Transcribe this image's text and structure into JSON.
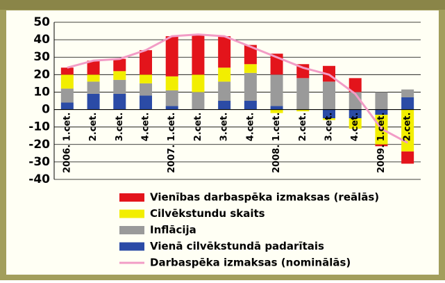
{
  "chart_data": {
    "type": "stacked-bar-line",
    "categories": [
      "2006. 1.cet.",
      "2.cet.",
      "3.cet.",
      "4.cet.",
      "2007. 1.cet.",
      "2.cet.",
      "3.cet.",
      "4.cet.",
      "2008. 1.cet.",
      "2.cet.",
      "3.cet.",
      "4.cet.",
      "2009. 1.cet.",
      "2.cet."
    ],
    "series": [
      {
        "name": "Vienā cilvēkstundā padarītais",
        "color": "#2b4ba6",
        "values": [
          4,
          9,
          9,
          8,
          2,
          0,
          5,
          5,
          2,
          0,
          -5,
          -5,
          -3,
          7
        ]
      },
      {
        "name": "Inflācija",
        "color": "#9a9a9a",
        "values": [
          8,
          7,
          8,
          7,
          9,
          10,
          11,
          16,
          18,
          18,
          16,
          10,
          10,
          4.5
        ]
      },
      {
        "name": "Cilvēkstundu skaits",
        "color": "#f2ee00",
        "values": [
          8,
          4,
          5,
          5,
          8,
          10,
          8,
          5,
          -2,
          -1,
          -1,
          -6,
          -17,
          -24
        ]
      },
      {
        "name": "Vienības darbaspēka izmaksas (reālās)",
        "color": "#e3141b",
        "values": [
          4,
          8,
          7,
          14,
          23,
          23,
          18,
          11,
          12,
          8,
          9,
          8,
          -1,
          -7
        ]
      },
      {
        "name": "Darbaspēka izmaksas (nominālās)",
        "color": "#f29cc6",
        "type": "line",
        "values": [
          24,
          28,
          29,
          34,
          42,
          43,
          42,
          36,
          30,
          24,
          20,
          9,
          -11,
          -19
        ]
      }
    ],
    "legend_order": [
      3,
      2,
      1,
      0,
      4
    ],
    "ylim": [
      -40,
      50
    ],
    "yticks": [
      -40,
      -30,
      -20,
      -10,
      0,
      10,
      20,
      30,
      40,
      50
    ],
    "grid": true
  }
}
